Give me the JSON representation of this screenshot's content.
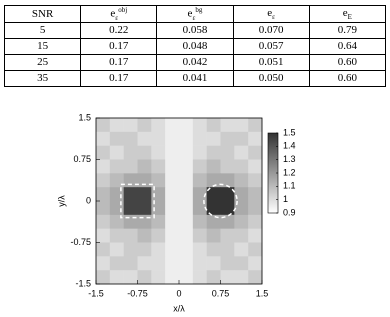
{
  "table": {
    "header": [
      "SNR",
      {
        "base": "e",
        "sub": "ε",
        "sup": "obj"
      },
      {
        "base": "e",
        "sub": "ε",
        "sup": "bg"
      },
      {
        "base": "e",
        "sub": "ε"
      },
      {
        "base": "e",
        "sub": "E"
      }
    ],
    "rows": [
      [
        "5",
        "0.22",
        "0.058",
        "0.070",
        "0.79"
      ],
      [
        "15",
        "0.17",
        "0.048",
        "0.057",
        "0.64"
      ],
      [
        "25",
        "0.17",
        "0.042",
        "0.051",
        "0.60"
      ],
      [
        "35",
        "0.17",
        "0.041",
        "0.050",
        "0.60"
      ]
    ]
  },
  "chart_data": {
    "type": "heatmap",
    "xlabel": "x/λ",
    "ylabel": "y/λ",
    "xlim": [
      -1.5,
      1.5
    ],
    "ylim": [
      -1.5,
      1.5
    ],
    "xticks": [
      -1.5,
      -0.75,
      0,
      0.75,
      1.5
    ],
    "yticks": [
      -1.5,
      -0.75,
      0,
      0.75,
      1.5
    ],
    "zlim": [
      0.9,
      1.5
    ],
    "zticks": [
      0.9,
      1,
      1.1,
      1.2,
      1.3,
      1.4,
      1.5
    ],
    "colors": [
      "#ffffff",
      "#333333"
    ],
    "z": [
      [
        1.05,
        1.0,
        1.0,
        1.05,
        1.0,
        0.95,
        0.95,
        1.0,
        1.05,
        1.0,
        1.0,
        1.05
      ],
      [
        1.0,
        1.05,
        1.05,
        1.0,
        1.0,
        0.95,
        0.95,
        1.0,
        1.0,
        1.05,
        1.05,
        1.0
      ],
      [
        1.05,
        1.0,
        1.05,
        1.05,
        1.0,
        0.95,
        0.95,
        1.0,
        1.05,
        1.05,
        1.0,
        1.05
      ],
      [
        1.0,
        1.05,
        1.05,
        1.1,
        1.05,
        0.95,
        0.95,
        1.05,
        1.1,
        1.05,
        1.05,
        1.0
      ],
      [
        1.05,
        1.1,
        1.15,
        1.15,
        1.1,
        0.95,
        0.95,
        1.1,
        1.15,
        1.15,
        1.1,
        1.05
      ],
      [
        1.1,
        1.15,
        1.45,
        1.45,
        1.15,
        0.95,
        0.95,
        1.15,
        1.5,
        1.5,
        1.15,
        1.1
      ],
      [
        1.1,
        1.15,
        1.45,
        1.45,
        1.15,
        0.95,
        0.95,
        1.15,
        1.5,
        1.5,
        1.15,
        1.1
      ],
      [
        1.05,
        1.1,
        1.15,
        1.15,
        1.1,
        0.95,
        0.95,
        1.1,
        1.15,
        1.15,
        1.1,
        1.05
      ],
      [
        1.0,
        1.05,
        1.05,
        1.1,
        1.05,
        0.95,
        0.95,
        1.05,
        1.1,
        1.05,
        1.05,
        1.0
      ],
      [
        1.05,
        1.0,
        1.05,
        1.05,
        1.0,
        0.95,
        0.95,
        1.0,
        1.05,
        1.05,
        1.0,
        1.05
      ],
      [
        1.0,
        1.05,
        1.05,
        1.0,
        1.0,
        0.95,
        0.95,
        1.0,
        1.0,
        1.05,
        1.05,
        1.0
      ],
      [
        1.05,
        1.0,
        1.0,
        1.05,
        1.0,
        0.95,
        0.95,
        1.0,
        1.05,
        1.0,
        1.0,
        1.05
      ]
    ]
  }
}
